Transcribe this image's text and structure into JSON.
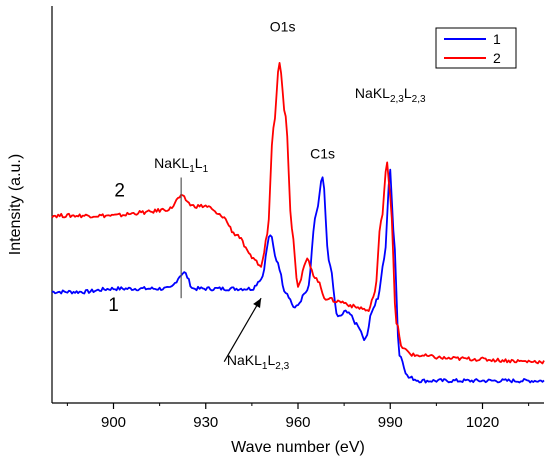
{
  "chart_data": {
    "type": "line",
    "title": "",
    "xlabel": "Wave number (eV)",
    "ylabel": "Intensity (a.u.)",
    "xlim": [
      880,
      1040
    ],
    "xticks": [
      900,
      930,
      960,
      990,
      1020
    ],
    "yticks": [],
    "grid": false,
    "legend_position": "top-right",
    "series": [
      {
        "name": "1",
        "color": "#0000ff",
        "x": [
          880,
          890,
          900,
          910,
          918,
          923,
          926,
          935,
          945,
          948,
          951,
          953,
          956,
          959,
          963,
          966,
          968,
          970,
          973,
          976,
          979,
          982,
          984,
          986,
          988,
          990,
          991,
          993,
          996,
          1000,
          1020,
          1040
        ],
        "y": [
          0.2,
          0.2,
          0.21,
          0.21,
          0.21,
          0.26,
          0.21,
          0.21,
          0.21,
          0.24,
          0.38,
          0.3,
          0.2,
          0.15,
          0.2,
          0.45,
          0.56,
          0.3,
          0.12,
          0.14,
          0.1,
          0.05,
          0.14,
          0.18,
          0.3,
          0.58,
          0.4,
          0.0,
          -0.07,
          -0.08,
          -0.08,
          -0.08
        ]
      },
      {
        "name": "2",
        "color": "#ff0000",
        "x": [
          880,
          890,
          900,
          910,
          918,
          922,
          926,
          930,
          935,
          940,
          945,
          948,
          950,
          952,
          954,
          956,
          958,
          960,
          963,
          966,
          969,
          973,
          980,
          983,
          985,
          987,
          989,
          990,
          992,
          994,
          998,
          1010,
          1040
        ],
        "y": [
          0.44,
          0.44,
          0.44,
          0.45,
          0.46,
          0.5,
          0.47,
          0.47,
          0.44,
          0.38,
          0.31,
          0.28,
          0.38,
          0.72,
          0.92,
          0.75,
          0.4,
          0.22,
          0.3,
          0.24,
          0.18,
          0.17,
          0.15,
          0.14,
          0.2,
          0.42,
          0.61,
          0.5,
          0.1,
          0.02,
          0.0,
          -0.01,
          -0.02
        ]
      }
    ],
    "annotations": [
      {
        "text": "O1s",
        "x": 955,
        "y": 1.02
      },
      {
        "text": "C1s",
        "x": 968,
        "y": 0.62
      },
      {
        "main": "NaKL",
        "sub1": "1",
        "mid": "L",
        "sub2": "1",
        "x": 922,
        "y": 0.59
      },
      {
        "main": "NaKL",
        "sub1": "2,3",
        "mid": "L",
        "sub2": "2,3",
        "x": 990,
        "y": 0.81
      },
      {
        "main": "NaKL",
        "sub1": "1",
        "mid": "L",
        "sub2": "2,3",
        "x": 947,
        "y": -0.03
      }
    ],
    "curve_labels": [
      {
        "text": "2",
        "x": 902,
        "y": 0.5
      },
      {
        "text": "1",
        "x": 900,
        "y": 0.14
      }
    ]
  }
}
